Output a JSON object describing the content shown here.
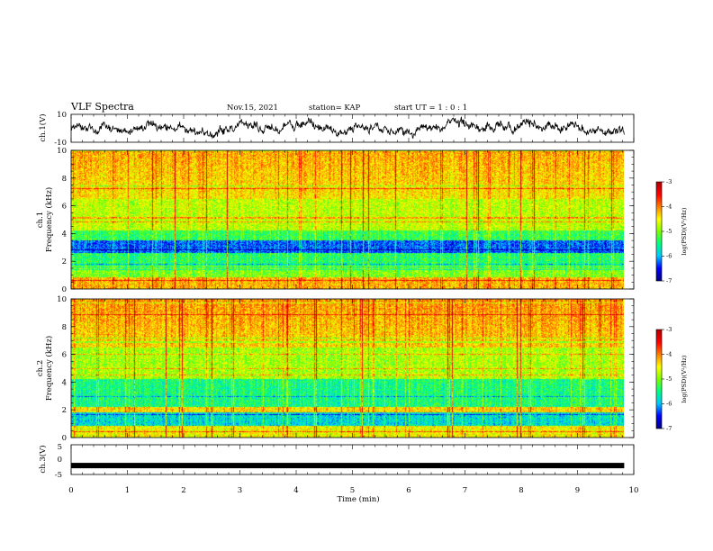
{
  "header": {
    "title": "VLF Spectra",
    "date": "Nov.15, 2021",
    "station": "station= KAP",
    "start": "start  UT =   1 : 0  : 1"
  },
  "chart_data": [
    {
      "name": "ch1-waveform",
      "type": "line",
      "ylabel": "ch.1(V)",
      "ylim": [
        -10,
        10
      ],
      "yticks": [
        "10",
        "-10"
      ],
      "xlim": [
        0,
        10
      ],
      "data_end_min": 9.83
    },
    {
      "name": "ch1-spectrogram",
      "type": "heatmap",
      "ylabel_line1": "ch.1",
      "ylabel_line2": "Frequency (kHz)",
      "ylim": [
        0,
        10
      ],
      "yticks": [
        "0",
        "2",
        "4",
        "6",
        "8",
        "10"
      ],
      "colorbar": {
        "label": "log(PSD)(V²/Hz)",
        "range": [
          -7,
          -3
        ],
        "ticks": [
          "-3",
          "-4",
          "-5",
          "-6",
          "-7"
        ]
      }
    },
    {
      "name": "ch2-spectrogram",
      "type": "heatmap",
      "ylabel_line1": "ch.2",
      "ylabel_line2": "Frequency (kHz)",
      "ylim": [
        0,
        10
      ],
      "yticks": [
        "0",
        "2",
        "4",
        "6",
        "8",
        "10"
      ],
      "colorbar": {
        "label": "log(PSD)(V²/Hz)",
        "range": [
          -7,
          -3
        ],
        "ticks": [
          "-3",
          "-4",
          "-5",
          "-6",
          "-7"
        ]
      }
    },
    {
      "name": "ch3-waveform",
      "type": "line",
      "ylabel": "ch.3(V)",
      "ylim": [
        -5,
        5
      ],
      "yticks": [
        "5",
        "0",
        "-5"
      ],
      "signal_level": -2
    }
  ],
  "xaxis": {
    "label": "Time  (min)",
    "range": [
      0,
      10
    ],
    "ticks": [
      "0",
      "1",
      "2",
      "3",
      "4",
      "5",
      "6",
      "7",
      "8",
      "9",
      "10"
    ]
  },
  "colors": {
    "waveform": "#000000",
    "spectrum_scale": [
      "#00007f",
      "#0000ff",
      "#00c8ff",
      "#00ff80",
      "#7fff00",
      "#ffff00",
      "#ff7f00",
      "#ff0000",
      "#b00000"
    ]
  }
}
